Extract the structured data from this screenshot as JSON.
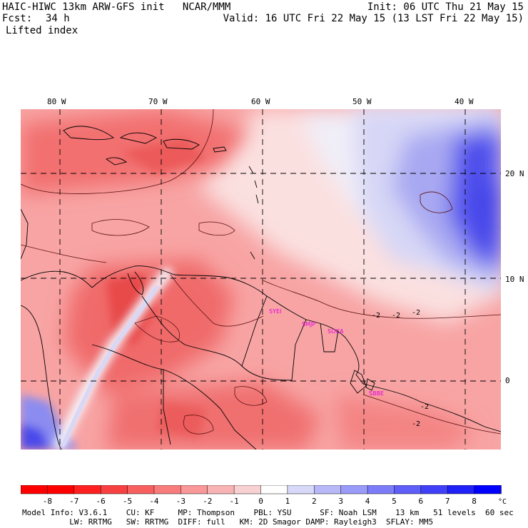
{
  "header": {
    "left_line1": "HAIC-HIWC 13km ARW-GFS init   NCAR/MMM",
    "left_line2_label": "Fcst:",
    "left_line2_value": "34 h",
    "left_line3": "Lifted index",
    "right_line1": "Init: 06 UTC Thu 21 May 15",
    "right_line2": "Valid: 16 UTC Fri 22 May 15 (13 LST Fri 22 May 15)"
  },
  "map": {
    "lon_labels": [
      "80 W",
      "70 W",
      "60 W",
      "50 W",
      "40 W"
    ],
    "lat_labels": [
      "20 N",
      "10 N",
      "0"
    ],
    "contour_labels": [
      "-2",
      "-2",
      "-2",
      "-2",
      "-2"
    ],
    "stations": [
      "SYEI",
      "SMJP",
      "SOCA",
      "SBBE"
    ]
  },
  "colorbar": {
    "ticks": [
      "-8",
      "-7",
      "-6",
      "-5",
      "-4",
      "-3",
      "-2",
      "-1",
      "0",
      "1",
      "2",
      "3",
      "4",
      "5",
      "6",
      "7",
      "8"
    ],
    "unit": "°C",
    "colors": [
      "#ff0000",
      "#ff2020",
      "#f84040",
      "#f86060",
      "#f87c7c",
      "#f89898",
      "#f8b4b4",
      "#f8d2d2",
      "#ffffff",
      "#d8d8f8",
      "#b8b8f8",
      "#9a9af8",
      "#7c7cf8",
      "#5e5ef8",
      "#4040f8",
      "#2020f8",
      "#0000ff"
    ]
  },
  "footer": {
    "line1": "Model Info: V3.6.1    CU: KF     MP: Thompson    PBL: YSU      SF: Noah LSM    13 km   51 levels  60 sec",
    "line2": "          LW: RRTMG   SW: RRTMG  DIFF: full   KM: 2D Smagor DAMP: Rayleigh3  SFLAY: MM5"
  }
}
